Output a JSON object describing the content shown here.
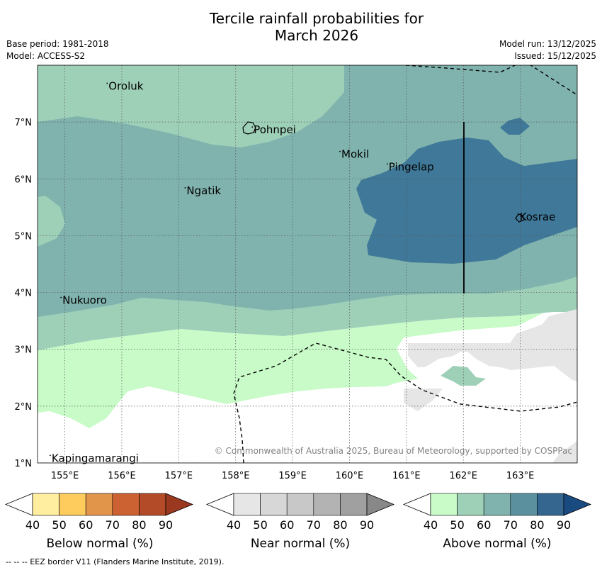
{
  "header": {
    "title_line1": "Tercile rainfall probabilities for",
    "title_line2": "March 2026",
    "base_period": "Base period: 1981-2018",
    "model": "Model: ACCESS-S2",
    "model_run": "Model run: 13/12/2025",
    "issued": "Issued: 15/12/2025"
  },
  "map": {
    "lat_labels": [
      "1°N",
      "2°N",
      "3°N",
      "4°N",
      "5°N",
      "6°N",
      "7°N"
    ],
    "lon_labels": [
      "155°E",
      "156°E",
      "157°E",
      "158°E",
      "159°E",
      "160°E",
      "161°E",
      "162°E",
      "163°E"
    ],
    "places": [
      {
        "name": "Oroluk",
        "lon": 155.78,
        "lat": 7.62
      },
      {
        "name": "Pohnpei",
        "lon": 158.33,
        "lat": 6.85
      },
      {
        "name": "Mokil",
        "lon": 159.87,
        "lat": 6.42
      },
      {
        "name": "Pingelap",
        "lon": 160.7,
        "lat": 6.2
      },
      {
        "name": "Ngatik",
        "lon": 157.15,
        "lat": 5.78
      },
      {
        "name": "Kosrae",
        "lon": 163.0,
        "lat": 5.32
      },
      {
        "name": "Nukuoro",
        "lon": 154.97,
        "lat": 3.85
      },
      {
        "name": "Kapingamarangi",
        "lon": 154.78,
        "lat": 1.07
      }
    ],
    "copyright": "© Commonwealth of Australia 2025, Bureau of Meteorology, supported by COSPPac"
  },
  "legend": {
    "below": {
      "label": "Below normal (%)",
      "colors": [
        "#ffeda0",
        "#fecc5c",
        "#e0954a",
        "#cc6231",
        "#b34a28",
        "#9a3820"
      ]
    },
    "near": {
      "label": "Near normal (%)",
      "colors": [
        "#e6e6e6",
        "#d7d7d7",
        "#c8c8c8",
        "#b3b3b3",
        "#a0a0a0",
        "#888888"
      ]
    },
    "above": {
      "label": "Above normal (%)",
      "colors": [
        "#c8fbc8",
        "#9ed0b8",
        "#80b3ae",
        "#5b919f",
        "#346690",
        "#1a4b80"
      ]
    },
    "ticks": [
      "40",
      "50",
      "60",
      "70",
      "80",
      "90"
    ]
  },
  "footnote": "--  --  -- EEZ border V11 (Flanders Marine Institute, 2019)."
}
